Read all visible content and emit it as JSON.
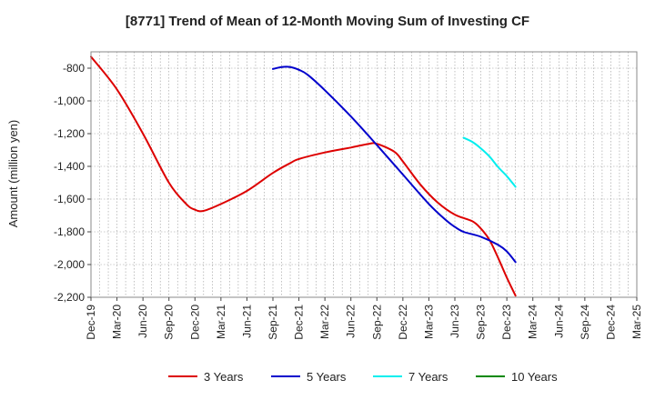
{
  "chart_data": {
    "type": "line",
    "title": "[8771]  Trend of Mean of 12-Month Moving Sum of Investing CF",
    "xlabel": "",
    "ylabel": "Amount (million yen)",
    "ylim": [
      -2200,
      -700
    ],
    "yticks": [
      -800,
      -1000,
      -1200,
      -1400,
      -1600,
      -1800,
      -2000,
      -2200
    ],
    "ytick_labels": [
      "-800",
      "-1,000",
      "-1,200",
      "-1,400",
      "-1,600",
      "-1,800",
      "-2,000",
      "-2,200"
    ],
    "x_start": "Dec-19",
    "x_count": 64,
    "xtick_labels": [
      "Dec-19",
      "Mar-20",
      "Jun-20",
      "Sep-20",
      "Dec-20",
      "Mar-21",
      "Jun-21",
      "Sep-21",
      "Dec-21",
      "Mar-22",
      "Jun-22",
      "Sep-22",
      "Dec-22",
      "Mar-23",
      "Jun-23",
      "Sep-23",
      "Dec-23",
      "Mar-24",
      "Jun-24",
      "Sep-24",
      "Dec-24",
      "Mar-25"
    ],
    "grid": true,
    "series": [
      {
        "name": "3 Years",
        "color": "#dd0000",
        "points": [
          [
            0,
            -730
          ],
          [
            3,
            -930
          ],
          [
            6,
            -1200
          ],
          [
            9,
            -1500
          ],
          [
            11,
            -1630
          ],
          [
            12,
            -1665
          ],
          [
            13,
            -1672
          ],
          [
            15,
            -1630
          ],
          [
            18,
            -1550
          ],
          [
            21,
            -1440
          ],
          [
            23,
            -1380
          ],
          [
            24,
            -1355
          ],
          [
            27,
            -1315
          ],
          [
            30,
            -1285
          ],
          [
            32,
            -1263
          ],
          [
            33,
            -1262
          ],
          [
            35,
            -1310
          ],
          [
            36,
            -1370
          ],
          [
            38,
            -1510
          ],
          [
            40,
            -1620
          ],
          [
            42,
            -1695
          ],
          [
            44,
            -1735
          ],
          [
            45,
            -1780
          ],
          [
            46,
            -1850
          ],
          [
            47,
            -1960
          ],
          [
            48,
            -2080
          ],
          [
            49,
            -2190
          ]
        ]
      },
      {
        "name": "5 Years",
        "color": "#0000cc",
        "points": [
          [
            21,
            -805
          ],
          [
            22,
            -793
          ],
          [
            23,
            -793
          ],
          [
            24,
            -810
          ],
          [
            25,
            -840
          ],
          [
            27,
            -935
          ],
          [
            30,
            -1095
          ],
          [
            33,
            -1270
          ],
          [
            36,
            -1450
          ],
          [
            39,
            -1630
          ],
          [
            41,
            -1730
          ],
          [
            42,
            -1770
          ],
          [
            43,
            -1800
          ],
          [
            45,
            -1830
          ],
          [
            47,
            -1880
          ],
          [
            48,
            -1920
          ],
          [
            49,
            -1985
          ]
        ]
      },
      {
        "name": "7 Years",
        "color": "#00eeee",
        "points": [
          [
            43,
            -1225
          ],
          [
            44,
            -1250
          ],
          [
            45,
            -1290
          ],
          [
            46,
            -1340
          ],
          [
            47,
            -1405
          ],
          [
            48,
            -1460
          ],
          [
            49,
            -1525
          ]
        ]
      },
      {
        "name": "10 Years",
        "color": "#008800",
        "points": []
      }
    ],
    "legend": "bottom"
  }
}
